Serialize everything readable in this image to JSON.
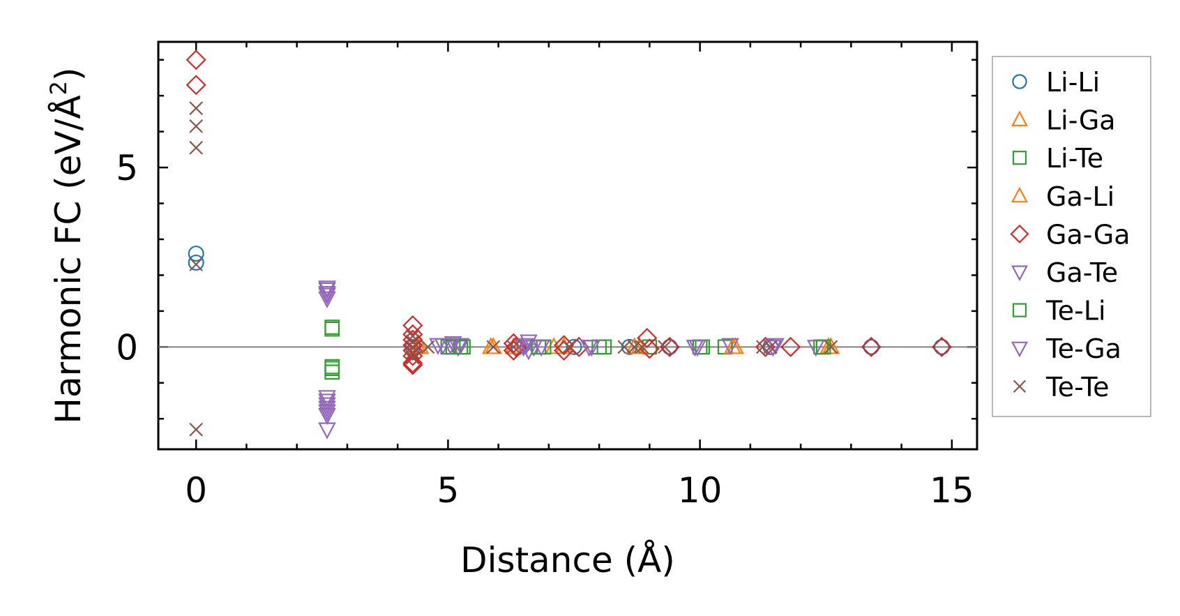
{
  "chart_data": {
    "type": "scatter",
    "xlabel": "Distance (Å)",
    "ylabel": "Harmonic FC (eV/Å",
    "ylabel_sup": "2",
    "ylabel_end": ")",
    "xlim": [
      -0.75,
      15.5
    ],
    "ylim": [
      -2.85,
      8.5
    ],
    "x_ticks": [
      0,
      5,
      10,
      15
    ],
    "y_ticks": [
      0,
      5
    ],
    "x_minor_step": 1,
    "y_minor_step": 1,
    "zero_line": true,
    "grid": false,
    "legend_position": "outside-right",
    "series": [
      {
        "name": "Li-Li",
        "marker": "circle",
        "color": "#1f77b4",
        "points": [
          [
            0,
            2.6
          ],
          [
            0,
            2.35
          ],
          [
            4.3,
            0.0
          ],
          [
            6.4,
            0.0
          ],
          [
            7.5,
            0.0
          ],
          [
            8.6,
            0.0
          ],
          [
            9.4,
            0.0
          ],
          [
            11.4,
            0.0
          ],
          [
            13.4,
            0.0
          ],
          [
            14.8,
            0.0
          ]
        ]
      },
      {
        "name": "Li-Ga",
        "marker": "triangle-up",
        "color": "#ff7f0e",
        "points": [
          [
            4.45,
            0.0
          ],
          [
            5.9,
            0.0
          ],
          [
            6.3,
            0.0
          ],
          [
            7.1,
            0.0
          ],
          [
            8.7,
            0.0
          ],
          [
            10.7,
            0.0
          ],
          [
            12.6,
            0.0
          ]
        ]
      },
      {
        "name": "Li-Te",
        "marker": "square",
        "color": "#2ca02c",
        "points": [
          [
            2.7,
            0.55
          ],
          [
            2.7,
            -0.55
          ],
          [
            2.7,
            -0.7
          ],
          [
            5.0,
            0.0
          ],
          [
            5.3,
            0.0
          ],
          [
            6.9,
            0.0
          ],
          [
            8.0,
            0.0
          ],
          [
            9.0,
            0.0
          ],
          [
            10.0,
            0.0
          ],
          [
            10.5,
            0.0
          ],
          [
            12.4,
            0.0
          ]
        ]
      },
      {
        "name": "Ga-Li",
        "marker": "triangle-up",
        "color": "#ff7f0e",
        "points": [
          [
            4.4,
            0.0
          ],
          [
            5.85,
            0.0
          ],
          [
            7.3,
            0.0
          ],
          [
            8.8,
            0.0
          ],
          [
            10.65,
            0.0
          ],
          [
            12.55,
            0.0
          ]
        ]
      },
      {
        "name": "Ga-Ga",
        "marker": "diamond",
        "color": "#d62728",
        "points": [
          [
            0,
            8.0
          ],
          [
            0,
            7.3
          ],
          [
            4.3,
            0.6
          ],
          [
            4.3,
            0.35
          ],
          [
            4.3,
            0.2
          ],
          [
            4.3,
            0.05
          ],
          [
            4.3,
            -0.1
          ],
          [
            4.3,
            -0.25
          ],
          [
            4.3,
            -0.45
          ],
          [
            4.3,
            -0.5
          ],
          [
            6.3,
            0.1
          ],
          [
            6.3,
            -0.1
          ],
          [
            6.35,
            0.0
          ],
          [
            7.3,
            0.05
          ],
          [
            7.3,
            -0.1
          ],
          [
            7.6,
            0.0
          ],
          [
            8.95,
            0.25
          ],
          [
            9.0,
            -0.05
          ],
          [
            9.4,
            0.0
          ],
          [
            11.3,
            0.0
          ],
          [
            11.8,
            0.0
          ],
          [
            13.4,
            0.0
          ],
          [
            14.8,
            0.0
          ]
        ]
      },
      {
        "name": "Ga-Te",
        "marker": "triangle-down",
        "color": "#9467bd",
        "points": [
          [
            2.6,
            1.65
          ],
          [
            2.6,
            1.5
          ],
          [
            2.6,
            1.35
          ],
          [
            2.6,
            -1.4
          ],
          [
            2.6,
            -1.6
          ],
          [
            2.6,
            -1.8
          ],
          [
            2.6,
            -2.3
          ],
          [
            4.9,
            0.05
          ],
          [
            5.1,
            0.1
          ],
          [
            5.2,
            0.0
          ],
          [
            6.5,
            0.0
          ],
          [
            6.6,
            0.15
          ],
          [
            6.6,
            -0.1
          ],
          [
            6.7,
            0.0
          ],
          [
            7.8,
            0.0
          ],
          [
            9.9,
            0.0
          ],
          [
            10.6,
            0.05
          ],
          [
            11.5,
            0.05
          ],
          [
            12.3,
            0.0
          ]
        ]
      },
      {
        "name": "Te-Li",
        "marker": "square",
        "color": "#2ca02c",
        "points": [
          [
            2.7,
            0.5
          ],
          [
            2.7,
            -0.6
          ],
          [
            5.1,
            0.0
          ],
          [
            5.25,
            0.0
          ],
          [
            6.8,
            0.0
          ],
          [
            8.1,
            0.0
          ],
          [
            10.05,
            0.0
          ],
          [
            12.45,
            0.0
          ]
        ]
      },
      {
        "name": "Te-Ga",
        "marker": "triangle-down",
        "color": "#9467bd",
        "points": [
          [
            2.6,
            1.6
          ],
          [
            2.6,
            1.45
          ],
          [
            2.6,
            -1.5
          ],
          [
            2.6,
            -1.7
          ],
          [
            2.6,
            -1.9
          ],
          [
            4.8,
            0.05
          ],
          [
            5.05,
            0.05
          ],
          [
            5.25,
            0.05
          ],
          [
            6.55,
            0.05
          ],
          [
            6.85,
            0.0
          ],
          [
            7.85,
            0.0
          ],
          [
            9.95,
            0.0
          ],
          [
            11.45,
            0.0
          ]
        ]
      },
      {
        "name": "Te-Te",
        "marker": "x",
        "color": "#8c564b",
        "points": [
          [
            0,
            6.65
          ],
          [
            0,
            6.15
          ],
          [
            0,
            5.55
          ],
          [
            0,
            2.3
          ],
          [
            0,
            -2.3
          ],
          [
            4.3,
            0.3
          ],
          [
            4.3,
            0.15
          ],
          [
            4.3,
            0.0
          ],
          [
            4.3,
            -0.15
          ],
          [
            4.3,
            -0.3
          ],
          [
            4.6,
            0.0
          ],
          [
            5.9,
            0.0
          ],
          [
            6.3,
            0.0
          ],
          [
            7.4,
            0.0
          ],
          [
            8.5,
            0.0
          ],
          [
            8.7,
            0.0
          ],
          [
            8.85,
            0.0
          ],
          [
            9.3,
            0.0
          ],
          [
            11.25,
            0.0
          ],
          [
            11.4,
            0.0
          ],
          [
            12.6,
            0.0
          ]
        ]
      }
    ]
  }
}
